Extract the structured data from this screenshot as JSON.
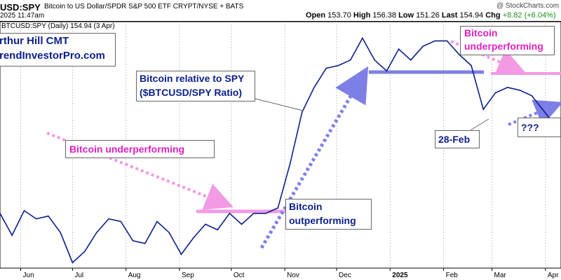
{
  "header": {
    "symbol": "USD:SPY",
    "description": "Bitcoin to US Dollar/SPDR S&P 500 ETF  CRYPT/NYSE + BATS",
    "watermark": "@ StockCharts.com",
    "date_line": "2025 11:47am",
    "ohlc": [
      {
        "label": "Open",
        "value": "153.70"
      },
      {
        "label": "High",
        "value": "156.38"
      },
      {
        "label": "Low",
        "value": "151.26"
      },
      {
        "label": "Last",
        "value": "154.94"
      },
      {
        "label": "Chg",
        "value": "+8.82 (+6.04%)"
      }
    ],
    "chg_color": "#1a8f1a",
    "legend_line": "BTCUSD:SPY (Daily) 154.94 (3 Apr)"
  },
  "annotations": {
    "author_line1": "rthur Hill CMT",
    "author_line2": "rendInvestorPro.com",
    "ratio_line1": "Bitcoin relative to SPY",
    "ratio_line2": "($BTCUSD/SPY Ratio)",
    "under_left": "Bitcoin underperforming",
    "out_line1": "Bitcoin",
    "out_line2": "outperforming",
    "under_right_line1": "Bitcoin",
    "under_right_line2": "underperforming",
    "feb_label": "28-Feb",
    "question": "???"
  },
  "colors": {
    "line": "#0b1f8c",
    "magenta": "#e020c0",
    "pink_line": "#f29ae4",
    "blue_line": "#7d7fe6",
    "grid": "#c8c8c8",
    "axis_text": "#000000"
  },
  "chart_data": {
    "type": "line",
    "title": "USD:SPY",
    "series": [
      {
        "name": "BTCUSD:SPY",
        "x": [
          "2024-05-20",
          "2024-05-27",
          "2024-06-03",
          "2024-06-10",
          "2024-06-17",
          "2024-06-24",
          "2024-07-01",
          "2024-07-08",
          "2024-07-15",
          "2024-07-22",
          "2024-07-29",
          "2024-08-05",
          "2024-08-12",
          "2024-08-19",
          "2024-08-26",
          "2024-09-02",
          "2024-09-09",
          "2024-09-16",
          "2024-09-23",
          "2024-09-30",
          "2024-10-07",
          "2024-10-14",
          "2024-10-21",
          "2024-10-28",
          "2024-11-04",
          "2024-11-11",
          "2024-11-18",
          "2024-11-25",
          "2024-12-02",
          "2024-12-09",
          "2024-12-16",
          "2024-12-23",
          "2024-12-30",
          "2025-01-06",
          "2025-01-13",
          "2025-01-20",
          "2025-01-27",
          "2025-02-03",
          "2025-02-10",
          "2025-02-17",
          "2025-02-24",
          "2025-03-03",
          "2025-03-10",
          "2025-03-17",
          "2025-03-24",
          "2025-04-03"
        ],
        "values": [
          120,
          112,
          121,
          118,
          119,
          113,
          102,
          106,
          113,
          118,
          117,
          110,
          109,
          117,
          113,
          105,
          111,
          116,
          114,
          120,
          116,
          120,
          120,
          122,
          138,
          157,
          166,
          173,
          174,
          176,
          184,
          176,
          172,
          180,
          176,
          181,
          183,
          183,
          178,
          174,
          158,
          164,
          166,
          165,
          163,
          155
        ]
      }
    ],
    "x_ticks": [
      "Jun",
      "Jul",
      "Aug",
      "Sep",
      "Oct",
      "Nov",
      "Dec",
      "2025",
      "Feb",
      "Mar",
      "Apr"
    ],
    "resistance_levels": [
      {
        "name": "pink-left",
        "value": 120
      },
      {
        "name": "blue-top",
        "value": 175
      },
      {
        "name": "pink-right",
        "value": 174
      }
    ],
    "ylim": [
      100,
      190
    ],
    "grid": true
  }
}
